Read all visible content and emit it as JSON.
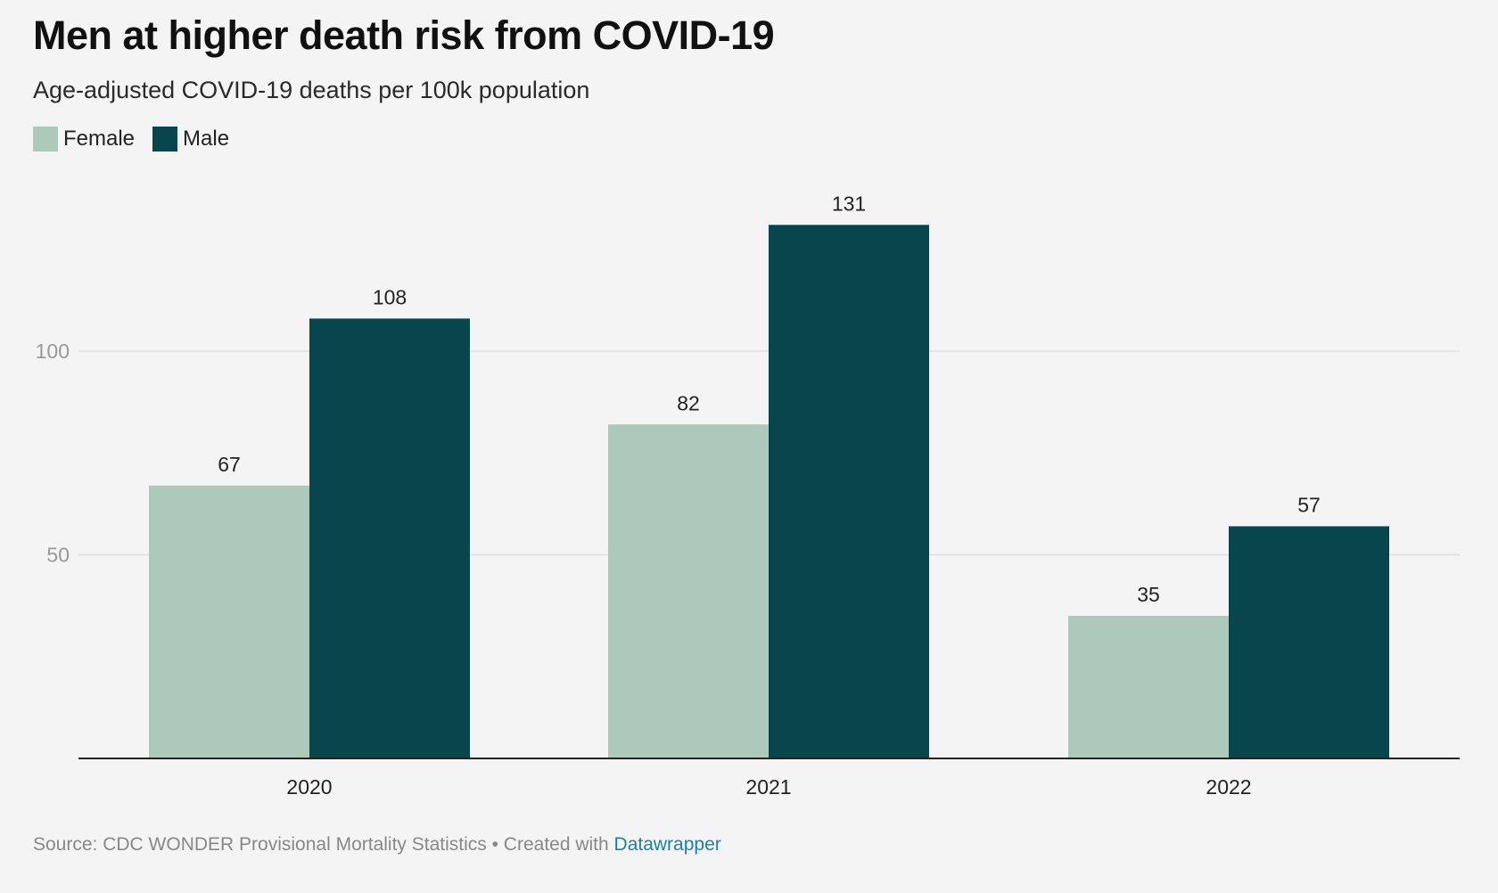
{
  "title": "Men at higher death risk from COVID-19",
  "subtitle": "Age-adjusted COVID-19 deaths per 100k population",
  "source": {
    "text": "Source: CDC WONDER Provisional Mortality Statistics • Created with ",
    "link": "Datawrapper"
  },
  "colors": {
    "female": "#acc9bb",
    "male": "#08464e",
    "grid": "#dedede",
    "axis": "#222222",
    "tick_label": "#999999",
    "link": "#1d81a2"
  },
  "chart_data": {
    "type": "bar",
    "categories": [
      "2020",
      "2021",
      "2022"
    ],
    "series": [
      {
        "name": "Female",
        "values": [
          67,
          82,
          35
        ]
      },
      {
        "name": "Male",
        "values": [
          108,
          131,
          57
        ]
      }
    ],
    "y_ticks": [
      50,
      100
    ],
    "ylim": [
      0,
      140
    ],
    "grid": true,
    "legend": "top-left",
    "data_labels": true
  }
}
